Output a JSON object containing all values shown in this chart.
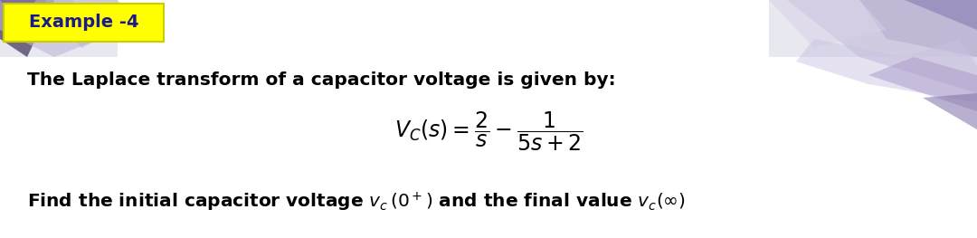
{
  "title_label": "Example -4",
  "title_bg": "#FFFF00",
  "title_text_color": "#1a1a8c",
  "title_fontsize": 14,
  "line1_text": "The Laplace transform of a capacitor voltage is given by:",
  "line1_fontsize": 14.5,
  "formula_fontsize": 17,
  "line3_fontsize": 14.5,
  "bg_color": "#FFFFFF",
  "slide_bg": "#e8e8f0",
  "deco_color1": "#c8c0e0",
  "deco_color2": "#d8d0ea",
  "text_color": "#000000"
}
